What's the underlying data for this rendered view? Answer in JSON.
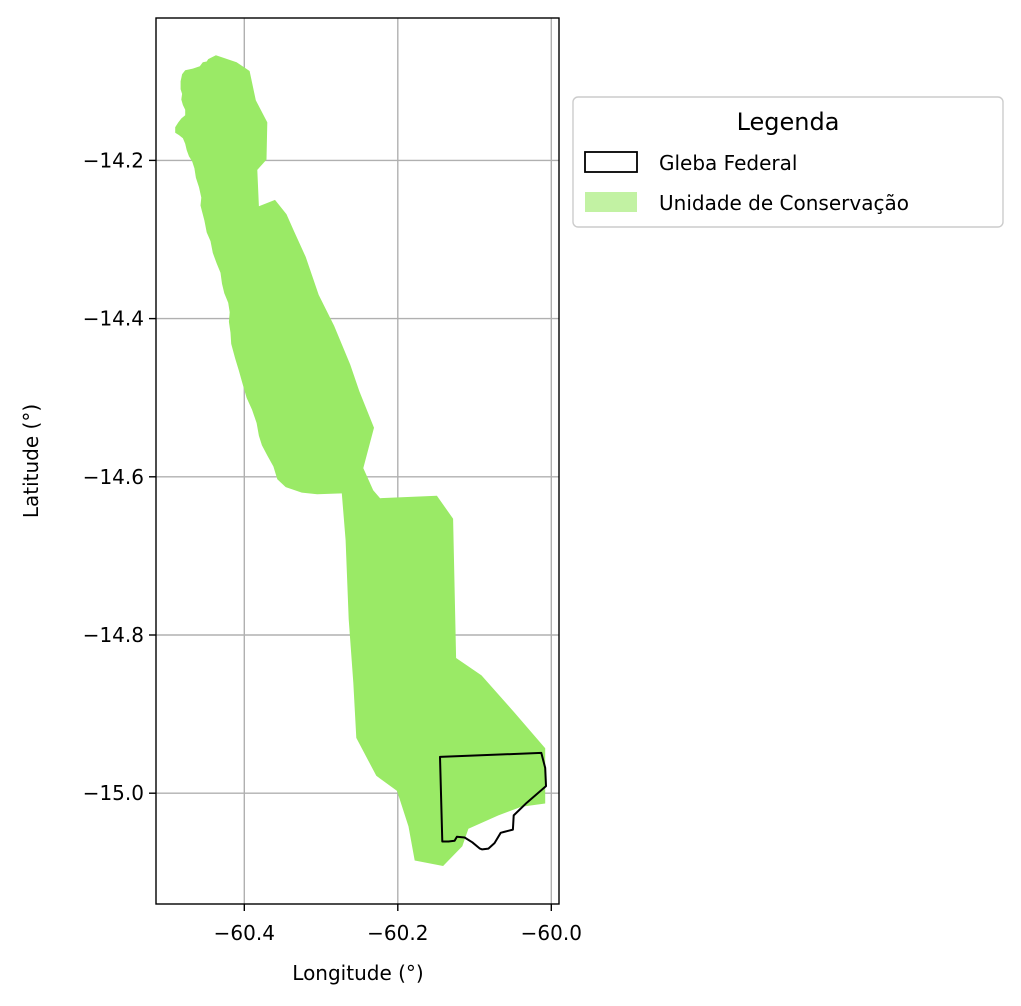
{
  "chart_data": {
    "type": "map",
    "xlabel": "Longitude (°)",
    "ylabel": "Latitude (°)",
    "xlim": [
      -60.515,
      -59.99
    ],
    "ylim": [
      -15.14,
      -14.02
    ],
    "grid": true,
    "x_ticks": [
      -60.4,
      -60.2,
      -60.0
    ],
    "x_tick_labels": [
      "−60.4",
      "−60.2",
      "−60.0"
    ],
    "y_ticks": [
      -14.2,
      -14.4,
      -14.6,
      -14.8,
      -15.0
    ],
    "y_tick_labels": [
      "−14.2",
      "−14.4",
      "−14.6",
      "−14.8",
      "−15.0"
    ],
    "legend": {
      "title": "Legenda",
      "placement": "outside-upper-right",
      "entries": [
        {
          "label": "Gleba Federal",
          "style": "outline",
          "color": "#000000"
        },
        {
          "label": "Unidade de Conservação",
          "style": "fill",
          "color": "#9aea66"
        }
      ]
    },
    "layers": [
      {
        "name": "Unidade de Conservação",
        "fill": "#9aea66",
        "polygon": [
          [
            -60.437,
            -14.067
          ],
          [
            -60.447,
            -14.072
          ],
          [
            -60.449,
            -14.075
          ],
          [
            -60.454,
            -14.076
          ],
          [
            -60.458,
            -14.081
          ],
          [
            -60.467,
            -14.084
          ],
          [
            -60.477,
            -14.086
          ],
          [
            -60.481,
            -14.091
          ],
          [
            -60.483,
            -14.1
          ],
          [
            -60.483,
            -14.11
          ],
          [
            -60.481,
            -14.116
          ],
          [
            -60.482,
            -14.123
          ],
          [
            -60.48,
            -14.13
          ],
          [
            -60.477,
            -14.136
          ],
          [
            -60.477,
            -14.143
          ],
          [
            -60.482,
            -14.147
          ],
          [
            -60.486,
            -14.152
          ],
          [
            -60.49,
            -14.158
          ],
          [
            -60.49,
            -14.165
          ],
          [
            -60.485,
            -14.168
          ],
          [
            -60.48,
            -14.172
          ],
          [
            -60.477,
            -14.179
          ],
          [
            -60.475,
            -14.187
          ],
          [
            -60.472,
            -14.195
          ],
          [
            -60.468,
            -14.201
          ],
          [
            -60.465,
            -14.21
          ],
          [
            -60.463,
            -14.222
          ],
          [
            -60.459,
            -14.234
          ],
          [
            -60.456,
            -14.247
          ],
          [
            -60.457,
            -14.257
          ],
          [
            -60.455,
            -14.265
          ],
          [
            -60.452,
            -14.276
          ],
          [
            -60.449,
            -14.291
          ],
          [
            -60.444,
            -14.302
          ],
          [
            -60.441,
            -14.317
          ],
          [
            -60.436,
            -14.33
          ],
          [
            -60.431,
            -14.342
          ],
          [
            -60.429,
            -14.356
          ],
          [
            -60.426,
            -14.368
          ],
          [
            -60.421,
            -14.38
          ],
          [
            -60.419,
            -14.392
          ],
          [
            -60.42,
            -14.404
          ],
          [
            -60.418,
            -14.418
          ],
          [
            -60.417,
            -14.432
          ],
          [
            -60.412,
            -14.45
          ],
          [
            -60.407,
            -14.466
          ],
          [
            -60.402,
            -14.483
          ],
          [
            -60.397,
            -14.5
          ],
          [
            -60.39,
            -14.515
          ],
          [
            -60.384,
            -14.532
          ],
          [
            -60.381,
            -14.548
          ],
          [
            -60.377,
            -14.56
          ],
          [
            -60.37,
            -14.573
          ],
          [
            -60.362,
            -14.587
          ],
          [
            -60.357,
            -14.603
          ],
          [
            -60.346,
            -14.613
          ],
          [
            -60.325,
            -14.62
          ],
          [
            -60.305,
            -14.622
          ],
          [
            -60.273,
            -14.621
          ],
          [
            -60.268,
            -14.68
          ],
          [
            -60.264,
            -14.78
          ],
          [
            -60.258,
            -14.86
          ],
          [
            -60.254,
            -14.93
          ],
          [
            -60.228,
            -14.978
          ],
          [
            -60.201,
            -14.997
          ],
          [
            -60.186,
            -15.042
          ],
          [
            -60.178,
            -15.085
          ],
          [
            -60.141,
            -15.092
          ],
          [
            -60.116,
            -15.067
          ],
          [
            -60.108,
            -15.045
          ],
          [
            -60.069,
            -15.028
          ],
          [
            -60.039,
            -15.017
          ],
          [
            -60.008,
            -15.013
          ],
          [
            -60.008,
            -14.943
          ],
          [
            -60.048,
            -14.898
          ],
          [
            -60.091,
            -14.851
          ],
          [
            -60.124,
            -14.829
          ],
          [
            -60.128,
            -14.653
          ],
          [
            -60.149,
            -14.624
          ],
          [
            -60.223,
            -14.627
          ],
          [
            -60.232,
            -14.617
          ],
          [
            -60.245,
            -14.589
          ],
          [
            -60.231,
            -14.538
          ],
          [
            -60.25,
            -14.492
          ],
          [
            -60.262,
            -14.458
          ],
          [
            -60.283,
            -14.409
          ],
          [
            -60.303,
            -14.37
          ],
          [
            -60.32,
            -14.322
          ],
          [
            -60.335,
            -14.29
          ],
          [
            -60.345,
            -14.268
          ],
          [
            -60.36,
            -14.25
          ],
          [
            -60.381,
            -14.258
          ],
          [
            -60.383,
            -14.212
          ],
          [
            -60.371,
            -14.199
          ],
          [
            -60.37,
            -14.152
          ],
          [
            -60.385,
            -14.124
          ],
          [
            -60.393,
            -14.087
          ],
          [
            -60.41,
            -14.076
          ],
          [
            -60.437,
            -14.067
          ]
        ]
      },
      {
        "name": "Gleba Federal",
        "stroke": "#000000",
        "polygon": [
          [
            -60.145,
            -14.954
          ],
          [
            -60.013,
            -14.949
          ],
          [
            -60.008,
            -14.968
          ],
          [
            -60.007,
            -14.991
          ],
          [
            -60.032,
            -15.012
          ],
          [
            -60.049,
            -15.028
          ],
          [
            -60.05,
            -15.046
          ],
          [
            -60.062,
            -15.049
          ],
          [
            -60.066,
            -15.05
          ],
          [
            -60.074,
            -15.063
          ],
          [
            -60.082,
            -15.07
          ],
          [
            -60.09,
            -15.071
          ],
          [
            -60.093,
            -15.07
          ],
          [
            -60.103,
            -15.062
          ],
          [
            -60.113,
            -15.056
          ],
          [
            -60.123,
            -15.055
          ],
          [
            -60.126,
            -15.06
          ],
          [
            -60.134,
            -15.061
          ],
          [
            -60.142,
            -15.061
          ],
          [
            -60.145,
            -14.954
          ]
        ]
      }
    ]
  }
}
